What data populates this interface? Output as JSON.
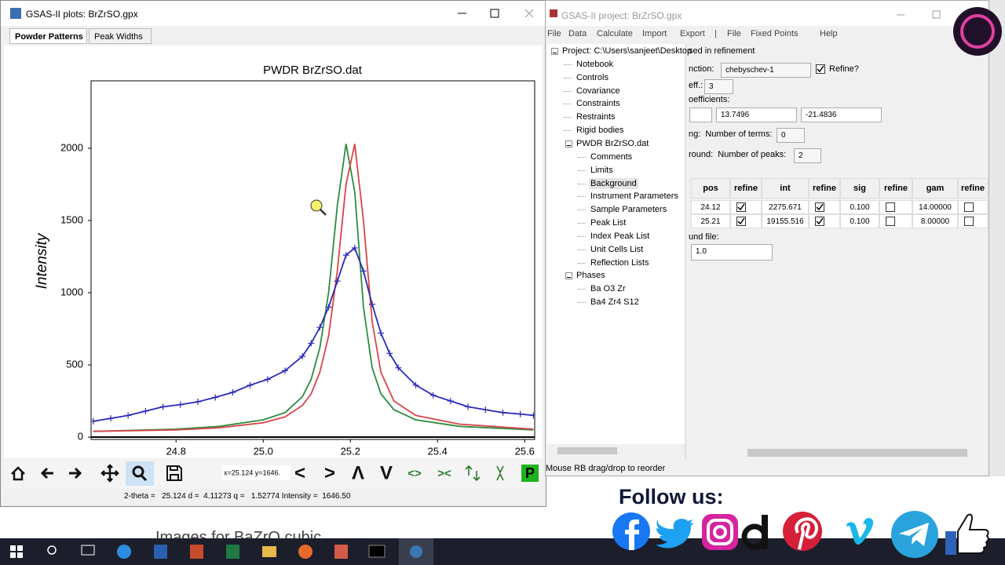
{
  "plot_window": {
    "title": "GSAS-II plots: BrZrSO.gpx",
    "tabs": [
      "Powder Patterns",
      "Peak Widths"
    ],
    "active_tab": 0,
    "chart": {
      "type": "line",
      "title": "PWDR BrZrSO.dat",
      "ylabel": "Intensity",
      "xlim": [
        24.605,
        25.623
      ],
      "ylim": [
        -16,
        2467
      ],
      "xticks": [
        24.8,
        {
          "value": 25,
          "label": "25.0"
        },
        25.2,
        25.4,
        25.6
      ],
      "yticks": [
        0,
        500,
        1000,
        1500,
        2000
      ],
      "series": [
        {
          "color": "#2e8b3e",
          "x": [
            24.61,
            24.8,
            24.9,
            25.0,
            25.05,
            25.09,
            25.11,
            25.13,
            25.15,
            25.17,
            25.19,
            25.21,
            25.23,
            25.25,
            25.27,
            25.3,
            25.35,
            25.45,
            25.62
          ],
          "values": [
            40,
            55,
            75,
            120,
            170,
            280,
            400,
            620,
            1000,
            1600,
            2030,
            1700,
            900,
            480,
            300,
            190,
            120,
            75,
            50
          ]
        },
        {
          "color": "#d9444a",
          "x": [
            24.61,
            24.8,
            24.9,
            25.0,
            25.05,
            25.09,
            25.11,
            25.13,
            25.15,
            25.17,
            25.19,
            25.21,
            25.23,
            25.25,
            25.27,
            25.3,
            25.35,
            25.45,
            25.62
          ],
          "values": [
            40,
            50,
            65,
            100,
            140,
            220,
            300,
            450,
            700,
            1150,
            1750,
            2030,
            1500,
            800,
            450,
            250,
            150,
            90,
            55
          ]
        },
        {
          "color": "#2a2ab8",
          "marker": "+",
          "x": [
            24.61,
            24.65,
            24.69,
            24.73,
            24.77,
            24.81,
            24.85,
            24.89,
            24.93,
            24.97,
            25.01,
            25.05,
            25.09,
            25.11,
            25.13,
            25.15,
            25.17,
            25.19,
            25.21,
            25.23,
            25.25,
            25.27,
            25.29,
            25.31,
            25.35,
            25.39,
            25.43,
            25.47,
            25.51,
            25.55,
            25.59,
            25.62
          ],
          "values": [
            110,
            130,
            150,
            180,
            210,
            225,
            245,
            275,
            310,
            360,
            400,
            460,
            560,
            650,
            760,
            900,
            1080,
            1260,
            1310,
            1150,
            920,
            720,
            580,
            480,
            360,
            290,
            250,
            210,
            190,
            170,
            160,
            150
          ]
        }
      ]
    },
    "coords": "x=25.124 y=1646.",
    "toolbar": [
      "<",
      ">",
      "Λ",
      "V",
      "<>",
      "><",
      "P"
    ],
    "status": "2-theta =   25.124 d =  4.11273 q =   1.52774 Intensity =  1646.50"
  },
  "project_window": {
    "title": "GSAS-II project: BrZrSO.gpx",
    "menu": [
      "File",
      "Data",
      "Calculate",
      "Import",
      "Export",
      "|",
      "File",
      "Fixed Points",
      "Help"
    ],
    "tree": [
      {
        "label": "Project: C:\\Users\\sanjeet\\Desktop",
        "level": 0
      },
      {
        "label": "Notebook",
        "level": 1
      },
      {
        "label": "Controls",
        "level": 1
      },
      {
        "label": "Covariance",
        "level": 1
      },
      {
        "label": "Constraints",
        "level": 1
      },
      {
        "label": "Restraints",
        "level": 1
      },
      {
        "label": "Rigid bodies",
        "level": 1
      },
      {
        "label": "PWDR BrZrSO.dat",
        "level": 1
      },
      {
        "label": "Comments",
        "level": 2
      },
      {
        "label": "Limits",
        "level": 2
      },
      {
        "label": "Background",
        "level": 2,
        "selected": true
      },
      {
        "label": "Instrument Parameters",
        "level": 2
      },
      {
        "label": "Sample Parameters",
        "level": 2
      },
      {
        "label": "Peak List",
        "level": 2
      },
      {
        "label": "Index Peak List",
        "level": 2
      },
      {
        "label": "Unit Cells List",
        "level": 2
      },
      {
        "label": "Reflection Lists",
        "level": 2
      },
      {
        "label": "Phases",
        "level": 1
      },
      {
        "label": "Ba O3 Zr",
        "level": 2
      },
      {
        "label": "Ba4 Zr4 S12",
        "level": 2
      }
    ],
    "panel": {
      "header": "sed in refinement",
      "function_label": "nction:",
      "function": "chebyschev-1",
      "refine_label": "Refine?",
      "refine": true,
      "coeff_label": "eff.:",
      "coeff": 3,
      "coefficients_label": "oefficients:",
      "coefficients": [
        "13.7496",
        "-21.4836"
      ],
      "terms_label": "ng:  Number of terms:",
      "terms": 0,
      "peaks_label": "round:  Number of peaks:",
      "peaks": 2,
      "peak_table": {
        "columns": [
          "pos",
          "refine",
          "int",
          "refine",
          "sig",
          "refine",
          "gam",
          "refine"
        ],
        "rows": [
          [
            "24.12",
            true,
            "2275.671",
            true,
            "0.100",
            false,
            "14.00000",
            false
          ],
          [
            "25.21",
            true,
            "19155.516",
            true,
            "0.100",
            false,
            "8.00000",
            false
          ]
        ]
      },
      "file_label": "und file:",
      "file": "1.0"
    },
    "status": "Mouse RB drag/drop to reorder"
  },
  "background_text": "Images for BaZrO cubic",
  "follow": "Follow us:"
}
